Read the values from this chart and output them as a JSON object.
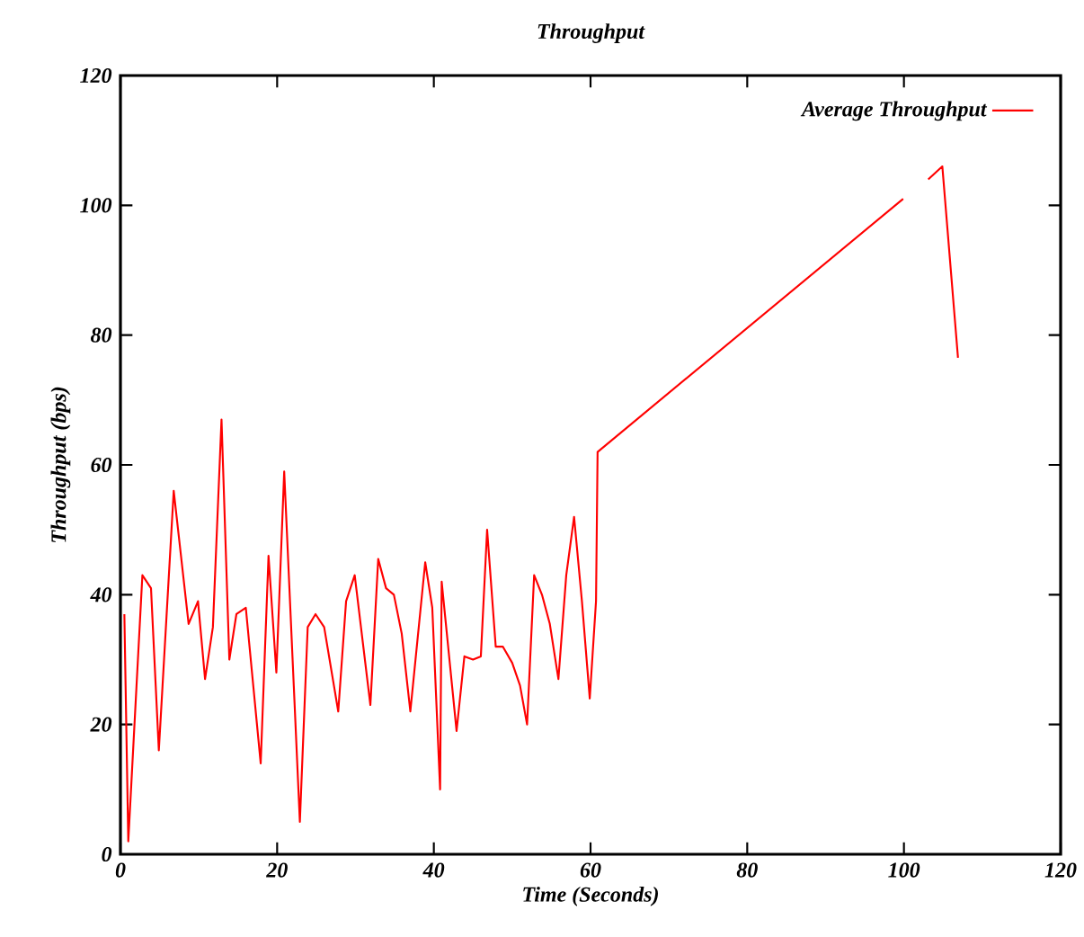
{
  "chart_data": {
    "type": "line",
    "title": "Throughput",
    "xlabel": "Time (Seconds)",
    "ylabel": "Throughput (bps)",
    "xlim": [
      0,
      120
    ],
    "ylim": [
      0,
      120
    ],
    "xticks": [
      0,
      20,
      40,
      60,
      80,
      100,
      120
    ],
    "yticks": [
      0,
      20,
      40,
      60,
      80,
      100,
      120
    ],
    "legend": "top right",
    "marker": "none",
    "line_style": "solid",
    "series": [
      {
        "name": "Average Throughput",
        "color": "#ff0000",
        "x": [
          0.5,
          1,
          2.8,
          3.9,
          4.9,
          6.8,
          8.7,
          9.9,
          10.8,
          11.8,
          12.9,
          13.9,
          14.8,
          16,
          17.9,
          18.9,
          19.9,
          20.9,
          22.9,
          23.9,
          24.9,
          26,
          27.8,
          28.8,
          29.9,
          31.9,
          32.9,
          33.9,
          34.9,
          35.9,
          37,
          38.9,
          39.8,
          40.8,
          41,
          42.9,
          43.9,
          45,
          46,
          46.8,
          47.9,
          48.8,
          50,
          51,
          51.9,
          52.8,
          53.8,
          54.8,
          55.9,
          56.9,
          57.9,
          58.9,
          59.9,
          60.7,
          60.9,
          99.9,
          101.5,
          103.1,
          104.9,
          106.9
        ],
        "values": [
          37,
          2,
          43,
          41,
          16,
          56,
          35.5,
          39,
          27,
          35,
          67,
          30,
          37,
          38,
          14,
          46,
          28,
          59,
          5,
          35,
          37,
          35,
          22,
          39,
          43,
          23,
          45.5,
          41,
          40,
          34,
          22,
          45,
          38,
          10,
          42,
          19,
          30.5,
          30,
          30.5,
          50,
          32,
          32,
          29.5,
          26,
          20,
          43,
          40,
          35.5,
          27,
          43,
          52,
          39,
          24,
          39,
          62,
          101,
          null,
          104,
          106,
          76.5
        ]
      }
    ]
  }
}
